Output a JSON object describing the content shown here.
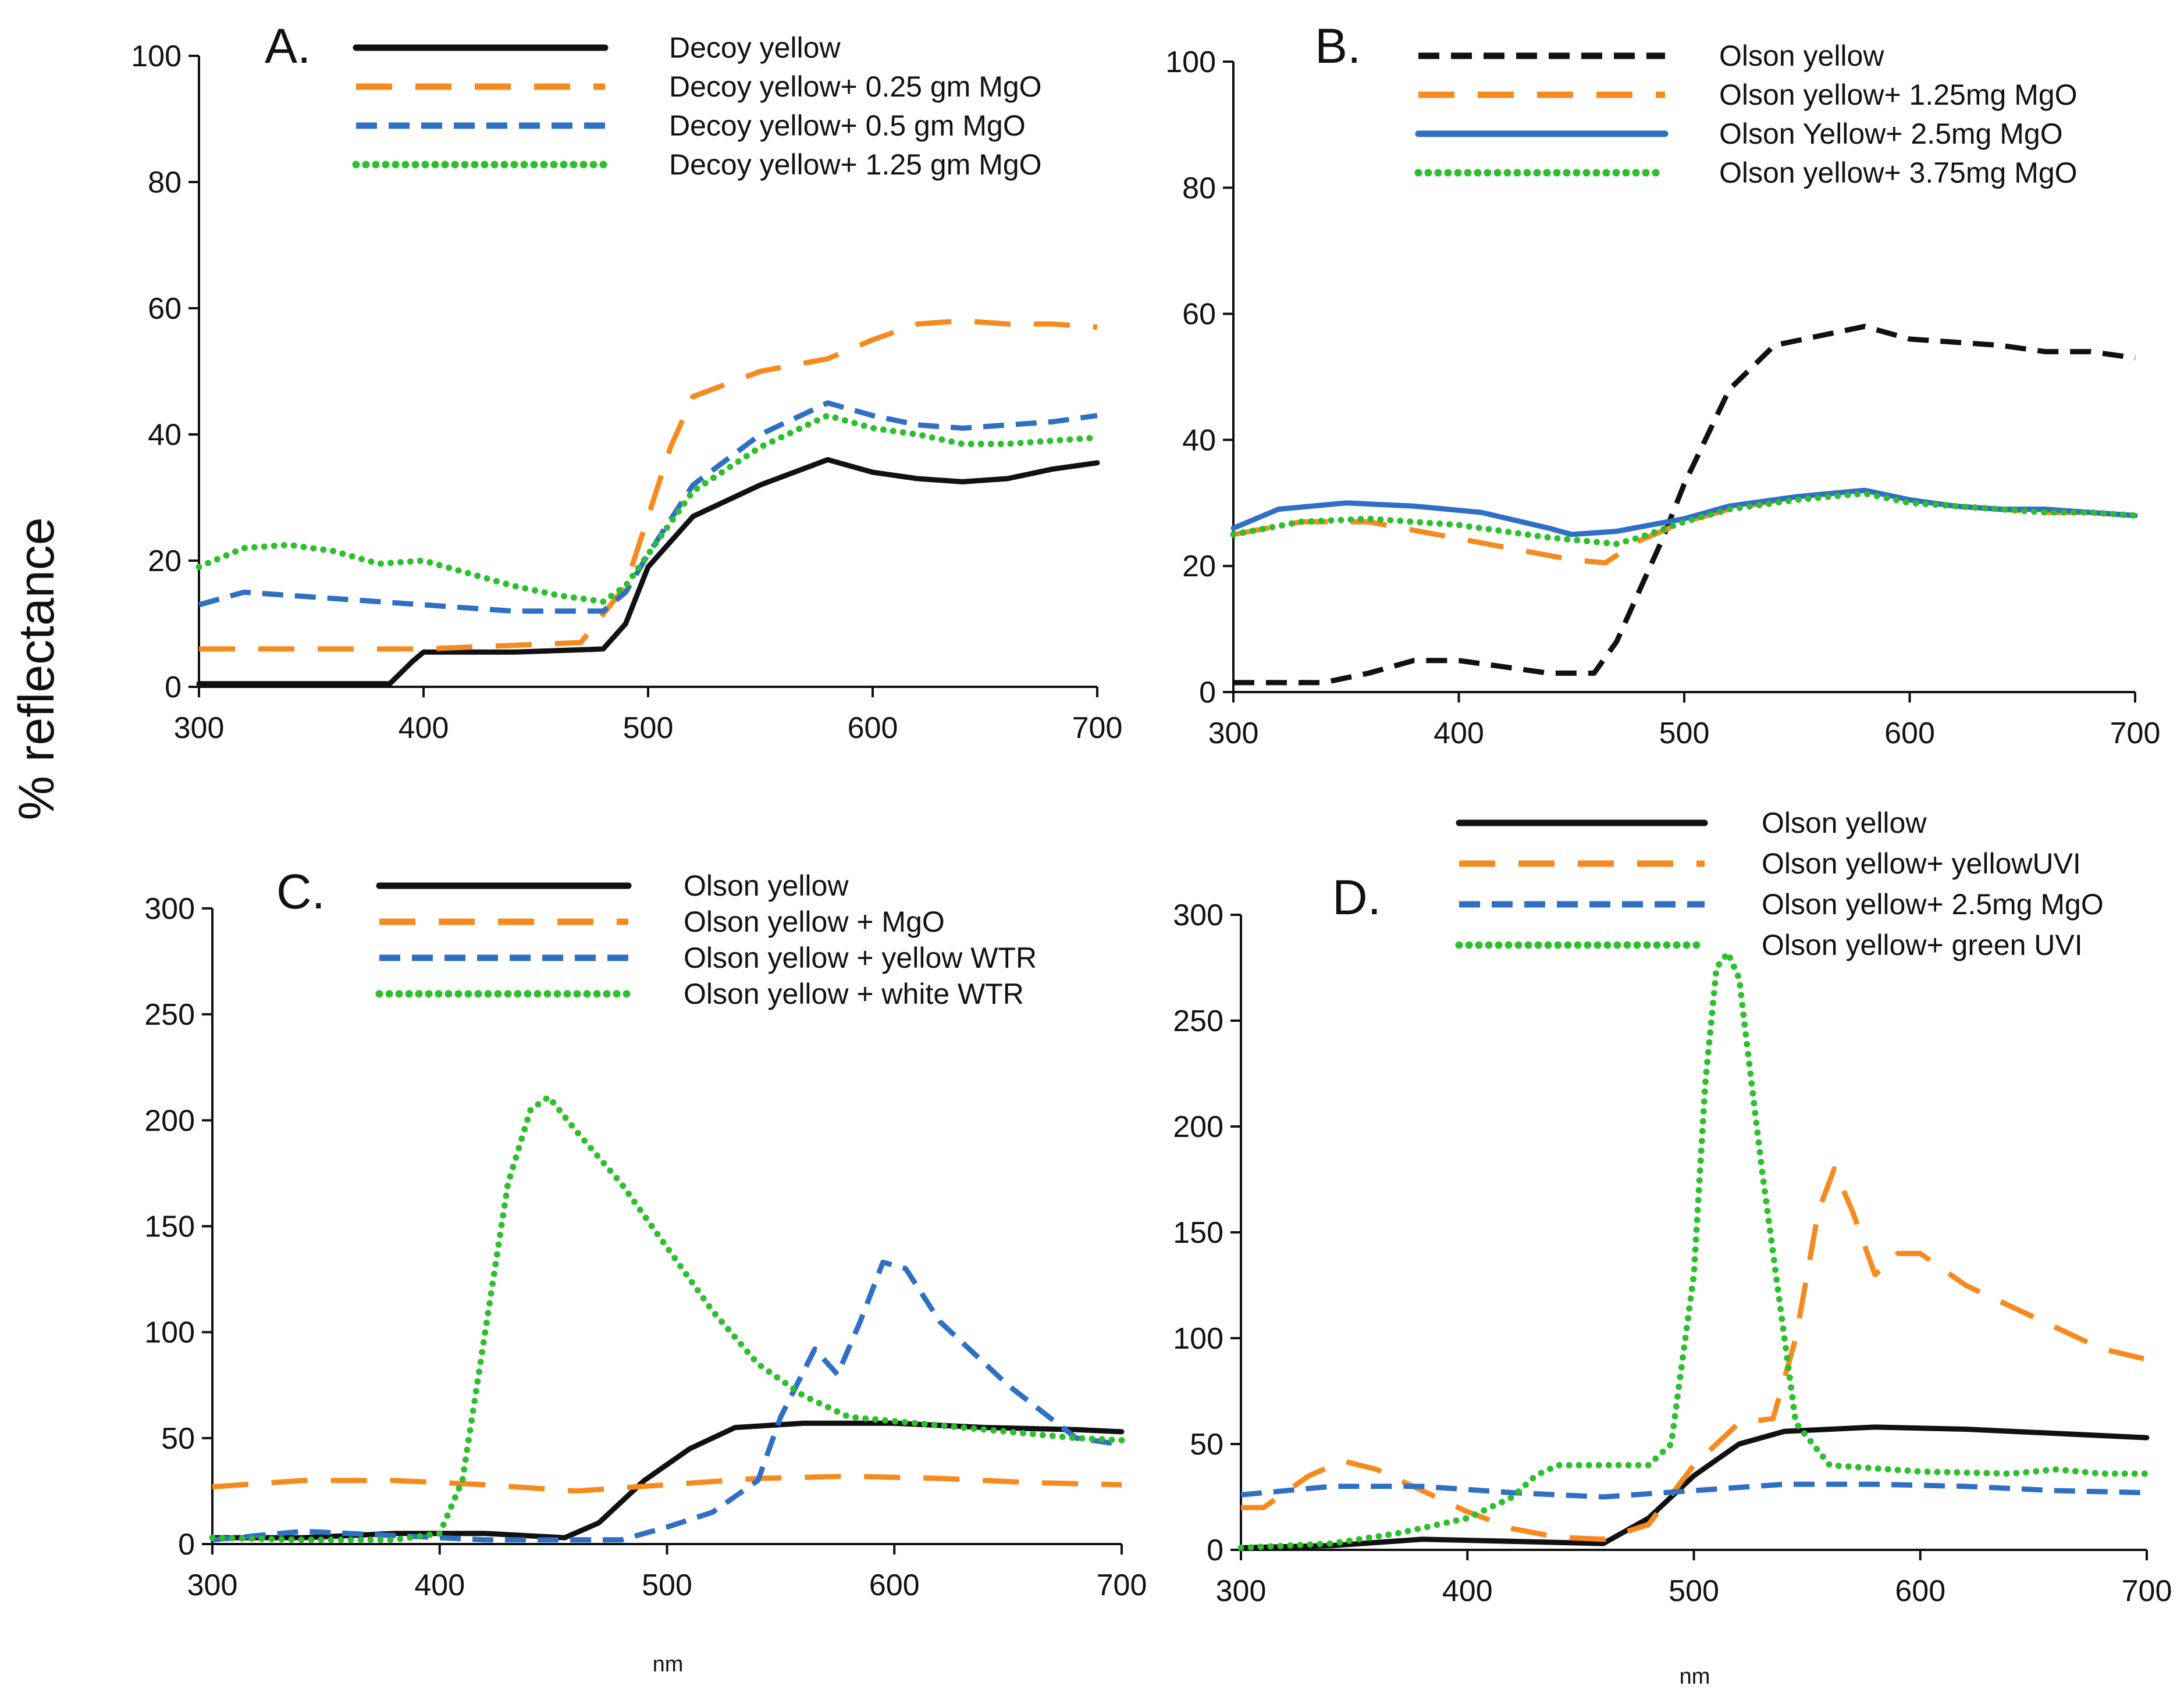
{
  "figure": {
    "ylabel": "% reflectance",
    "xlabel": "nm"
  },
  "colors": {
    "black": "#111111",
    "orange": "#F68A1E",
    "blue": "#2F6FC4",
    "green": "#2DBF2D"
  },
  "chart_data": [
    {
      "type": "line",
      "title": "A.",
      "xlabel": "",
      "ylabel": "% reflectance",
      "xlim": [
        300,
        700
      ],
      "ylim": [
        0,
        100
      ],
      "xticks": [
        300,
        400,
        500,
        600,
        700
      ],
      "yticks": [
        0,
        20,
        40,
        60,
        80,
        100
      ],
      "legend_position": "top",
      "series": [
        {
          "name": "Decoy yellow",
          "color": "black",
          "style": "solid",
          "x": [
            300,
            340,
            385,
            395,
            400,
            440,
            480,
            490,
            500,
            520,
            550,
            580,
            600,
            620,
            640,
            660,
            680,
            700
          ],
          "y": [
            0.5,
            0.5,
            0.5,
            4,
            5.5,
            5.5,
            6,
            10,
            19,
            27,
            32,
            36,
            34,
            33,
            32.5,
            33,
            34.5,
            35.5
          ]
        },
        {
          "name": "Decoy yellow+ 0.25 gm MgO",
          "color": "orange",
          "style": "long-dash",
          "x": [
            300,
            400,
            470,
            490,
            500,
            510,
            520,
            550,
            580,
            600,
            620,
            640,
            660,
            680,
            700
          ],
          "y": [
            6,
            6,
            7,
            16,
            27,
            38,
            46,
            50,
            52,
            55,
            57.5,
            58,
            57.5,
            57.5,
            57
          ]
        },
        {
          "name": "Decoy yellow+ 0.5 gm MgO",
          "color": "blue",
          "style": "dash",
          "x": [
            300,
            320,
            360,
            400,
            440,
            480,
            490,
            500,
            520,
            550,
            580,
            600,
            620,
            640,
            660,
            680,
            700
          ],
          "y": [
            13,
            15,
            14,
            13,
            12,
            12,
            15,
            21,
            32,
            40,
            45,
            43,
            41.5,
            41,
            41.5,
            42,
            43
          ]
        },
        {
          "name": "Decoy yellow+ 1.25 gm MgO",
          "color": "green",
          "style": "dot",
          "x": [
            300,
            320,
            340,
            360,
            380,
            400,
            420,
            440,
            460,
            480,
            490,
            500,
            520,
            550,
            580,
            600,
            620,
            640,
            660,
            680,
            700
          ],
          "y": [
            19,
            22,
            22.5,
            21.5,
            19.5,
            20,
            18,
            16,
            14.5,
            13.5,
            16,
            21,
            31,
            38,
            43,
            41,
            40,
            38.5,
            38.5,
            39,
            39.5
          ]
        }
      ]
    },
    {
      "type": "line",
      "title": "B.",
      "xlabel": "",
      "ylabel": "% reflectance",
      "xlim": [
        300,
        700
      ],
      "ylim": [
        0,
        100
      ],
      "xticks": [
        300,
        400,
        500,
        600,
        700
      ],
      "yticks": [
        0,
        20,
        40,
        60,
        80,
        100
      ],
      "legend_position": "top",
      "series": [
        {
          "name": "Olson yellow",
          "color": "black",
          "style": "dash",
          "x": [
            300,
            340,
            360,
            380,
            400,
            420,
            440,
            460,
            470,
            480,
            490,
            500,
            520,
            540,
            560,
            580,
            600,
            620,
            640,
            660,
            680,
            700
          ],
          "y": [
            1.5,
            1.5,
            3,
            5,
            5,
            4,
            3,
            3,
            8,
            16,
            24,
            33,
            48,
            55,
            56.5,
            58,
            56,
            55.5,
            55,
            54,
            54,
            53
          ]
        },
        {
          "name": "Olson yellow+ 1.25mg MgO",
          "color": "orange",
          "style": "long-dash",
          "x": [
            300,
            330,
            360,
            390,
            420,
            450,
            465,
            480,
            500,
            520,
            550,
            580,
            600,
            620,
            640,
            660,
            680,
            700
          ],
          "y": [
            25,
            27,
            27,
            25,
            23,
            21,
            20.5,
            24,
            27,
            29,
            31,
            32,
            30.5,
            29.5,
            29,
            28.5,
            28.5,
            28
          ]
        },
        {
          "name": "Olson Yellow+ 2.5mg MgO",
          "color": "blue",
          "style": "solid",
          "x": [
            300,
            320,
            350,
            380,
            410,
            440,
            450,
            470,
            500,
            520,
            550,
            580,
            600,
            620,
            640,
            660,
            680,
            700
          ],
          "y": [
            26,
            29,
            30,
            29.5,
            28.5,
            26,
            25,
            25.5,
            27.5,
            29.5,
            31,
            32,
            30.5,
            29.5,
            29,
            29,
            28.5,
            28
          ]
        },
        {
          "name": "Olson yellow+ 3.75mg MgO",
          "color": "green",
          "style": "dot",
          "x": [
            300,
            330,
            360,
            400,
            440,
            470,
            480,
            500,
            520,
            550,
            580,
            600,
            620,
            640,
            660,
            680,
            700
          ],
          "y": [
            25,
            27,
            27.5,
            26.5,
            24.5,
            23.5,
            24.5,
            27,
            29,
            30.5,
            31.5,
            30,
            29.5,
            29,
            28.5,
            28.5,
            28
          ]
        }
      ]
    },
    {
      "type": "line",
      "title": "C.",
      "xlabel": "nm",
      "ylabel": "% reflectance",
      "xlim": [
        300,
        700
      ],
      "ylim": [
        0,
        300
      ],
      "xticks": [
        300,
        400,
        500,
        600,
        700
      ],
      "yticks": [
        0,
        50,
        100,
        150,
        200,
        250,
        300
      ],
      "legend_position": "top",
      "series": [
        {
          "name": "Olson yellow",
          "color": "black",
          "style": "solid",
          "x": [
            300,
            340,
            380,
            420,
            455,
            470,
            490,
            510,
            530,
            560,
            600,
            640,
            680,
            700
          ],
          "y": [
            3,
            3,
            5,
            5,
            3,
            10,
            30,
            45,
            55,
            57,
            57,
            55,
            54,
            53
          ]
        },
        {
          "name": "Olson yellow + MgO",
          "color": "orange",
          "style": "long-dash",
          "x": [
            300,
            340,
            380,
            420,
            460,
            500,
            540,
            580,
            620,
            660,
            700
          ],
          "y": [
            27,
            30,
            30,
            28,
            25,
            28,
            31,
            32,
            31,
            29,
            28
          ]
        },
        {
          "name": "Olson yellow + yellow WTR",
          "color": "blue",
          "style": "dash",
          "x": [
            300,
            340,
            380,
            420,
            460,
            480,
            500,
            520,
            540,
            550,
            565,
            575,
            585,
            595,
            605,
            620,
            650,
            680,
            700
          ],
          "y": [
            2,
            6,
            4,
            2,
            2,
            2,
            8,
            15,
            30,
            60,
            92,
            80,
            105,
            133,
            130,
            105,
            75,
            50,
            47
          ]
        },
        {
          "name": "Olson yellow + white WTR",
          "color": "green",
          "style": "dot",
          "x": [
            300,
            340,
            380,
            400,
            410,
            420,
            430,
            440,
            448,
            460,
            480,
            500,
            520,
            540,
            560,
            580,
            600,
            620,
            650,
            680,
            700
          ],
          "y": [
            3,
            2,
            2,
            5,
            30,
            100,
            170,
            205,
            211,
            195,
            170,
            140,
            110,
            85,
            70,
            60,
            58,
            56,
            53,
            50,
            49
          ]
        }
      ]
    },
    {
      "type": "line",
      "title": "D.",
      "xlabel": "nm",
      "ylabel": "% reflectance",
      "xlim": [
        300,
        700
      ],
      "ylim": [
        0,
        300
      ],
      "xticks": [
        300,
        400,
        500,
        600,
        700
      ],
      "yticks": [
        0,
        50,
        100,
        150,
        200,
        250,
        300
      ],
      "legend_position": "top",
      "series": [
        {
          "name": "Olson yellow",
          "color": "black",
          "style": "solid",
          "x": [
            300,
            340,
            380,
            420,
            460,
            480,
            500,
            520,
            540,
            580,
            620,
            660,
            700
          ],
          "y": [
            1,
            2,
            5,
            4,
            3,
            15,
            35,
            50,
            56,
            58,
            57,
            55,
            53
          ]
        },
        {
          "name": "Olson yellow+ yellowUVI",
          "color": "orange",
          "style": "long-dash",
          "x": [
            300,
            310,
            330,
            345,
            360,
            380,
            400,
            420,
            440,
            460,
            480,
            500,
            520,
            535,
            545,
            555,
            562,
            570,
            580,
            590,
            600,
            620,
            650,
            680,
            700
          ],
          "y": [
            20,
            20,
            35,
            42,
            38,
            28,
            18,
            10,
            6,
            5,
            12,
            40,
            60,
            62,
            100,
            160,
            180,
            160,
            130,
            140,
            140,
            125,
            110,
            95,
            90
          ]
        },
        {
          "name": "Olson yellow+ 2.5mg MgO",
          "color": "blue",
          "style": "dash",
          "x": [
            300,
            340,
            380,
            420,
            460,
            500,
            540,
            580,
            620,
            660,
            700
          ],
          "y": [
            26,
            30,
            30,
            27,
            25,
            28,
            31,
            31,
            30,
            28,
            27
          ]
        },
        {
          "name": "Olson yellow+ green UVI",
          "color": "green",
          "style": "dot",
          "x": [
            300,
            340,
            370,
            400,
            420,
            430,
            440,
            460,
            480,
            490,
            500,
            505,
            510,
            515,
            520,
            530,
            545,
            560,
            600,
            640,
            660,
            680,
            700
          ],
          "y": [
            1,
            3,
            8,
            15,
            25,
            35,
            40,
            40,
            40,
            50,
            130,
            220,
            275,
            282,
            270,
            180,
            60,
            40,
            37,
            36,
            38,
            36,
            36
          ]
        }
      ]
    }
  ]
}
